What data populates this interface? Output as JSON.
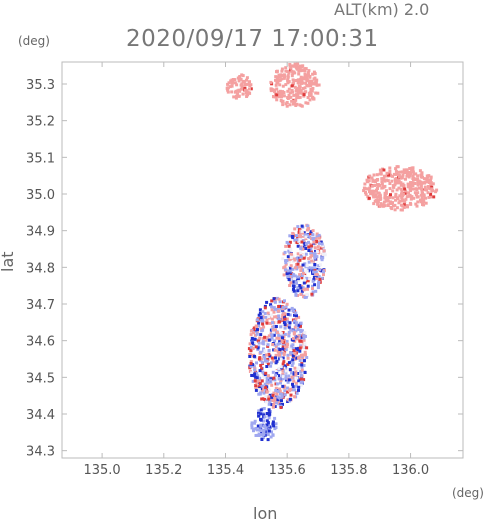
{
  "chart_data": {
    "type": "heatmap",
    "title": "2020/09/17 17:00:31",
    "altitude_label": "ALT(km)",
    "altitude_value": "2.0",
    "xlabel": "lon",
    "ylabel": "lat",
    "x_unit": "(deg)",
    "y_unit": "(deg)",
    "xlim": [
      134.87,
      136.17
    ],
    "ylim": [
      34.28,
      35.36
    ],
    "x_ticks": [
      "135.0",
      "135.2",
      "135.4",
      "135.6",
      "135.8",
      "136.0"
    ],
    "y_ticks": [
      "34.3",
      "34.4",
      "34.5",
      "34.6",
      "34.7",
      "34.8",
      "34.9",
      "35.0",
      "35.1",
      "35.2",
      "35.3"
    ],
    "grid": false,
    "colors": {
      "positive": "#f4a0a0",
      "positive_strong": "#e03c3c",
      "negative": "#a0a8f0",
      "negative_strong": "#2030d0",
      "frame": "#bbbbbb"
    },
    "regions": [
      {
        "lon": [
          135.54,
          135.7
        ],
        "lat": [
          35.24,
          35.36
        ],
        "sign": "positive"
      },
      {
        "lon": [
          135.4,
          135.48
        ],
        "lat": [
          35.26,
          35.33
        ],
        "sign": "positive"
      },
      {
        "lon": [
          135.84,
          136.08
        ],
        "lat": [
          34.96,
          35.08
        ],
        "sign": "positive"
      },
      {
        "lon": [
          135.47,
          135.66
        ],
        "lat": [
          34.42,
          34.72
        ],
        "sign": "mixed"
      },
      {
        "lon": [
          135.58,
          135.72
        ],
        "lat": [
          34.72,
          34.92
        ],
        "sign": "mixed"
      },
      {
        "lon": [
          135.48,
          135.56
        ],
        "lat": [
          34.33,
          34.42
        ],
        "sign": "negative"
      }
    ]
  }
}
